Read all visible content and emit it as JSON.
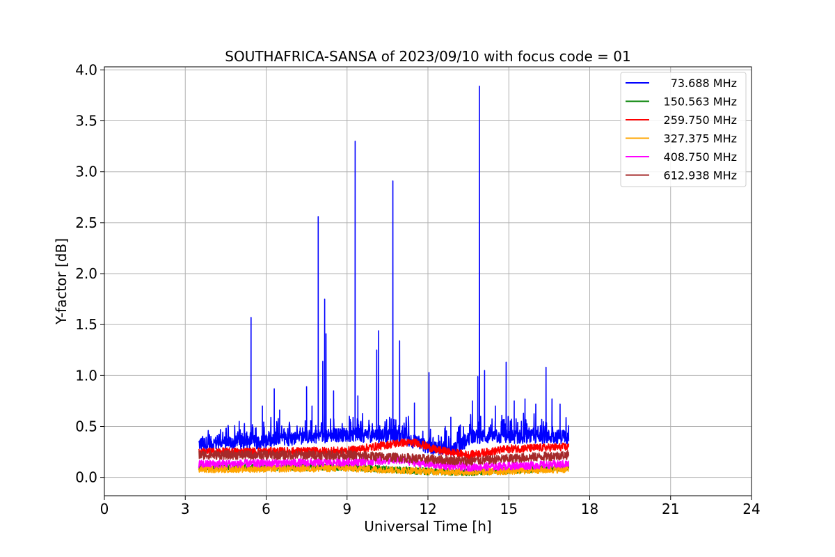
{
  "chart_data": {
    "type": "line",
    "title": "SOUTHAFRICA-SANSA of 2023/09/10 with focus code = 01",
    "xlabel": "Universal Time [h]",
    "ylabel": "Y-factor [dB]",
    "xlim": [
      0,
      24
    ],
    "ylim": [
      -0.18,
      4.03
    ],
    "xticks": [
      0,
      3,
      6,
      9,
      12,
      15,
      18,
      21,
      24
    ],
    "xtick_labels": [
      "0",
      "3",
      "6",
      "9",
      "12",
      "15",
      "18",
      "21",
      "24"
    ],
    "yticks": [
      0.0,
      0.5,
      1.0,
      1.5,
      2.0,
      2.5,
      3.0,
      3.5,
      4.0
    ],
    "ytick_labels": [
      "0.0",
      "0.5",
      "1.0",
      "1.5",
      "2.0",
      "2.5",
      "3.0",
      "3.5",
      "4.0"
    ],
    "grid": true,
    "legend_position": "upper right",
    "time_range": [
      3.5,
      17.22
    ],
    "series": [
      {
        "name": "73.688 MHz",
        "color": "#0000ff",
        "baseline": [
          [
            3.5,
            0.33
          ],
          [
            6.0,
            0.35
          ],
          [
            7.5,
            0.4
          ],
          [
            9.0,
            0.42
          ],
          [
            11.0,
            0.4
          ],
          [
            12.0,
            0.3
          ],
          [
            13.0,
            0.27
          ],
          [
            13.6,
            0.4
          ],
          [
            17.2,
            0.4
          ]
        ],
        "spikes": [
          [
            3.9,
            0.42
          ],
          [
            4.5,
            0.44
          ],
          [
            5.0,
            0.55
          ],
          [
            5.44,
            1.57
          ],
          [
            5.6,
            0.48
          ],
          [
            5.86,
            0.7
          ],
          [
            6.3,
            0.87
          ],
          [
            6.5,
            0.66
          ],
          [
            7.5,
            0.89
          ],
          [
            7.7,
            0.7
          ],
          [
            7.93,
            2.56
          ],
          [
            8.1,
            1.14
          ],
          [
            8.17,
            1.75
          ],
          [
            8.22,
            1.41
          ],
          [
            8.5,
            0.85
          ],
          [
            9.3,
            3.3
          ],
          [
            9.4,
            0.8
          ],
          [
            10.1,
            1.25
          ],
          [
            10.17,
            1.44
          ],
          [
            10.7,
            2.91
          ],
          [
            10.95,
            1.34
          ],
          [
            11.5,
            0.73
          ],
          [
            12.04,
            1.03
          ],
          [
            12.85,
            0.59
          ],
          [
            13.65,
            0.75
          ],
          [
            13.85,
            0.99
          ],
          [
            13.91,
            3.84
          ],
          [
            14.1,
            1.05
          ],
          [
            14.5,
            0.7
          ],
          [
            14.9,
            1.13
          ],
          [
            15.2,
            0.75
          ],
          [
            15.6,
            0.77
          ],
          [
            16.0,
            0.72
          ],
          [
            16.38,
            1.08
          ],
          [
            16.6,
            0.77
          ],
          [
            16.9,
            0.72
          ]
        ],
        "noise": 0.14
      },
      {
        "name": "150.563 MHz",
        "color": "#008000",
        "baseline": [
          [
            3.5,
            0.1
          ],
          [
            9.0,
            0.1
          ],
          [
            12.0,
            0.06
          ],
          [
            13.5,
            0.05
          ],
          [
            17.2,
            0.1
          ]
        ],
        "spikes": [],
        "noise": 0.07
      },
      {
        "name": "259.750 MHz",
        "color": "#ff0000",
        "baseline": [
          [
            3.5,
            0.25
          ],
          [
            9.0,
            0.26
          ],
          [
            10.0,
            0.3
          ],
          [
            11.0,
            0.34
          ],
          [
            11.6,
            0.34
          ],
          [
            12.3,
            0.27
          ],
          [
            13.5,
            0.22
          ],
          [
            15.0,
            0.28
          ],
          [
            17.2,
            0.3
          ]
        ],
        "spikes": [],
        "noise": 0.08
      },
      {
        "name": "327.375 MHz",
        "color": "#ffa500",
        "baseline": [
          [
            3.5,
            0.08
          ],
          [
            9.0,
            0.09
          ],
          [
            12.0,
            0.06
          ],
          [
            13.5,
            0.05
          ],
          [
            17.2,
            0.08
          ]
        ],
        "spikes": [],
        "noise": 0.07
      },
      {
        "name": "408.750 MHz",
        "color": "#ff00ff",
        "baseline": [
          [
            3.5,
            0.13
          ],
          [
            9.0,
            0.15
          ],
          [
            11.0,
            0.17
          ],
          [
            12.0,
            0.13
          ],
          [
            13.5,
            0.1
          ],
          [
            17.2,
            0.13
          ]
        ],
        "spikes": [],
        "noise": 0.08
      },
      {
        "name": "612.938 MHz",
        "color": "#a52a2a",
        "baseline": [
          [
            3.5,
            0.22
          ],
          [
            9.0,
            0.22
          ],
          [
            12.0,
            0.18
          ],
          [
            13.5,
            0.16
          ],
          [
            17.2,
            0.22
          ]
        ],
        "spikes": [],
        "noise": 0.09
      }
    ]
  }
}
